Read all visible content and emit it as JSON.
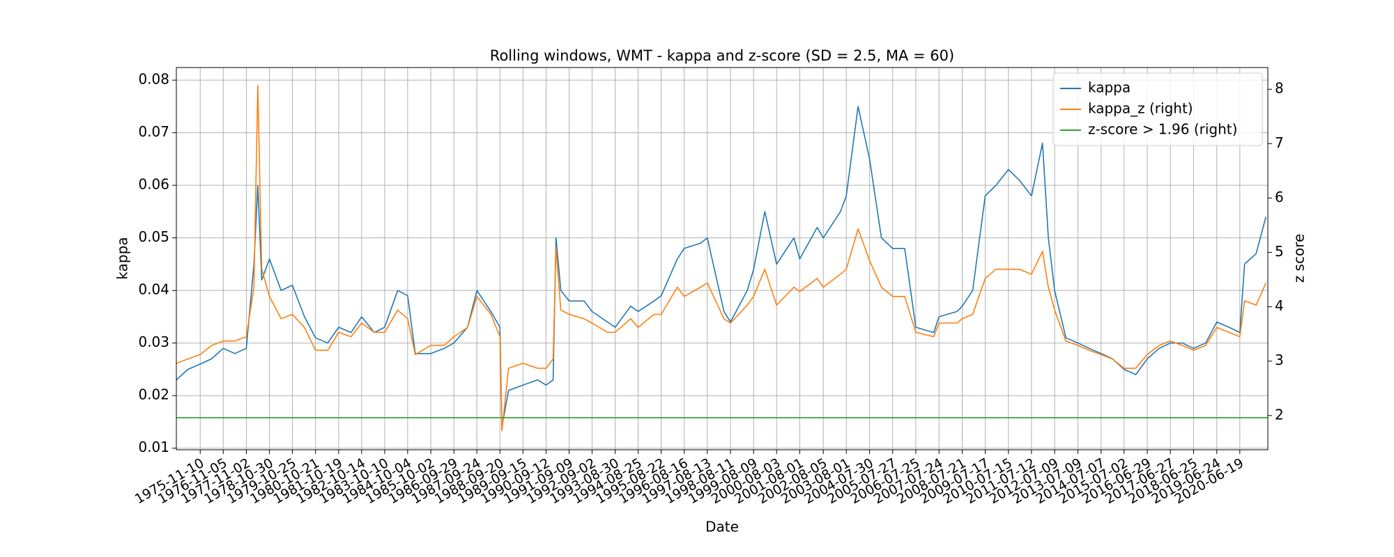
{
  "chart_data": {
    "type": "line",
    "title": "Rolling windows, WMT - kappa and z-score (SD = 2.5, MA = 60)",
    "x_label": "Date",
    "y_label": "kappa",
    "y2_label": "z score",
    "x": [
      "1974-11-01",
      "1975-05-01",
      "1975-11-10",
      "1976-05-07",
      "1976-11-05",
      "1977-05-05",
      "1977-11-02",
      "1978-03-01",
      "1978-05-01",
      "1978-07-01",
      "1978-10-30",
      "1979-05-01",
      "1979-10-25",
      "1980-05-01",
      "1980-10-21",
      "1981-05-01",
      "1981-10-19",
      "1982-05-01",
      "1982-10-14",
      "1983-05-01",
      "1983-10-10",
      "1984-05-01",
      "1984-10-04",
      "1985-02-01",
      "1985-10-02",
      "1986-05-01",
      "1986-09-29",
      "1987-05-01",
      "1987-09-24",
      "1988-05-01",
      "1988-09-20",
      "1988-10-20",
      "1989-02-01",
      "1989-09-15",
      "1990-05-01",
      "1990-09-12",
      "1991-01-01",
      "1991-02-15",
      "1991-05-01",
      "1991-09-09",
      "1992-05-01",
      "1992-09-02",
      "1993-05-01",
      "1993-08-30",
      "1994-05-01",
      "1994-08-25",
      "1995-05-01",
      "1995-08-22",
      "1996-05-01",
      "1996-08-16",
      "1997-05-01",
      "1997-08-13",
      "1998-05-01",
      "1998-08-11",
      "1999-05-01",
      "1999-08-09",
      "2000-02-01",
      "2000-08-03",
      "2001-05-01",
      "2001-08-01",
      "2002-05-01",
      "2002-08-05",
      "2003-05-01",
      "2003-08-01",
      "2004-02-01",
      "2004-07-30",
      "2005-02-01",
      "2005-07-27",
      "2006-02-01",
      "2006-07-25",
      "2007-05-01",
      "2007-07-24",
      "2008-05-01",
      "2008-07-21",
      "2009-01-01",
      "2009-07-17",
      "2010-01-01",
      "2010-07-15",
      "2011-01-01",
      "2011-07-12",
      "2012-01-01",
      "2012-04-01",
      "2012-07-09",
      "2013-01-01",
      "2013-07-09",
      "2014-01-01",
      "2014-07-07",
      "2015-01-01",
      "2015-07-02",
      "2016-01-01",
      "2016-06-29",
      "2017-01-01",
      "2017-06-27",
      "2018-01-01",
      "2018-06-25",
      "2019-01-01",
      "2019-06-24",
      "2020-01-01",
      "2020-06-19",
      "2020-09-01",
      "2021-03-01",
      "2021-08-01"
    ],
    "series": [
      {
        "name": "kappa",
        "color": "#1f77b4",
        "values": [
          0.023,
          0.025,
          0.026,
          0.027,
          0.029,
          0.028,
          0.029,
          0.045,
          0.06,
          0.042,
          0.046,
          0.04,
          0.041,
          0.035,
          0.031,
          0.03,
          0.033,
          0.032,
          0.035,
          0.032,
          0.033,
          0.04,
          0.039,
          0.028,
          0.028,
          0.029,
          0.03,
          0.033,
          0.04,
          0.036,
          0.033,
          0.014,
          0.021,
          0.022,
          0.023,
          0.022,
          0.023,
          0.05,
          0.04,
          0.038,
          0.038,
          0.036,
          0.034,
          0.033,
          0.037,
          0.036,
          0.038,
          0.039,
          0.046,
          0.048,
          0.049,
          0.05,
          0.036,
          0.034,
          0.04,
          0.044,
          0.055,
          0.045,
          0.05,
          0.046,
          0.052,
          0.05,
          0.055,
          0.058,
          0.075,
          0.065,
          0.05,
          0.048,
          0.048,
          0.033,
          0.032,
          0.035,
          0.036,
          0.037,
          0.04,
          0.058,
          0.06,
          0.063,
          0.061,
          0.058,
          0.068,
          0.05,
          0.04,
          0.031,
          0.03,
          0.029,
          0.028,
          0.027,
          0.025,
          0.024,
          0.027,
          0.029,
          0.03,
          0.03,
          0.029,
          0.03,
          0.034,
          0.033,
          0.032,
          0.045,
          0.047,
          0.054
        ]
      },
      {
        "name": "kappa_z (right)",
        "color": "#ff7f0e",
        "axis": "y2",
        "values": [
          2.96,
          3.04,
          3.12,
          3.29,
          3.37,
          3.37,
          3.45,
          4.36,
          8.07,
          4.69,
          4.19,
          3.78,
          3.86,
          3.62,
          3.2,
          3.2,
          3.53,
          3.45,
          3.7,
          3.53,
          3.53,
          3.94,
          3.78,
          3.12,
          3.29,
          3.29,
          3.45,
          3.62,
          4.19,
          3.86,
          3.45,
          1.72,
          2.87,
          2.96,
          2.87,
          2.87,
          3.04,
          5.1,
          3.94,
          3.86,
          3.78,
          3.7,
          3.53,
          3.53,
          3.78,
          3.62,
          3.86,
          3.86,
          4.36,
          4.19,
          4.36,
          4.44,
          3.78,
          3.7,
          4.03,
          4.19,
          4.69,
          4.03,
          4.36,
          4.28,
          4.52,
          4.36,
          4.6,
          4.69,
          5.43,
          4.85,
          4.36,
          4.19,
          4.19,
          3.53,
          3.45,
          3.7,
          3.7,
          3.78,
          3.86,
          4.52,
          4.69,
          4.69,
          4.69,
          4.6,
          5.02,
          4.36,
          3.94,
          3.37,
          3.29,
          3.2,
          3.12,
          3.04,
          2.87,
          2.87,
          3.12,
          3.29,
          3.37,
          3.29,
          3.2,
          3.29,
          3.62,
          3.53,
          3.45,
          4.11,
          4.03,
          4.44
        ]
      },
      {
        "name": "z-score > 1.96 (right)",
        "color": "#2ca02c",
        "axis": "y2",
        "x": [
          "1974-11-01",
          "2021-09-01"
        ],
        "values": [
          1.96,
          1.96
        ]
      }
    ],
    "xlim": [
      "1974-11-01",
      "2021-09-01"
    ],
    "xticks": [
      "1975-11-10",
      "1976-11-05",
      "1977-11-02",
      "1978-10-30",
      "1979-10-25",
      "1980-10-21",
      "1981-10-19",
      "1982-10-14",
      "1983-10-10",
      "1984-10-04",
      "1985-10-02",
      "1986-09-29",
      "1987-09-24",
      "1988-09-20",
      "1989-09-15",
      "1990-09-12",
      "1991-09-09",
      "1992-09-02",
      "1993-08-30",
      "1994-08-25",
      "1995-08-22",
      "1996-08-16",
      "1997-08-13",
      "1998-08-11",
      "1999-08-09",
      "2000-08-03",
      "2001-08-01",
      "2002-08-05",
      "2003-08-01",
      "2004-07-30",
      "2005-07-27",
      "2006-07-25",
      "2007-07-24",
      "2008-07-21",
      "2009-07-17",
      "2010-07-15",
      "2011-07-12",
      "2012-07-09",
      "2013-07-09",
      "2014-07-07",
      "2015-07-02",
      "2016-06-29",
      "2017-06-27",
      "2018-06-25",
      "2019-06-24",
      "2020-06-19"
    ],
    "ylim": [
      0.0097,
      0.0824
    ],
    "yticks": [
      0.01,
      0.02,
      0.03,
      0.04,
      0.05,
      0.06,
      0.07,
      0.08
    ],
    "y2lim": [
      1.37,
      8.4
    ],
    "y2ticks": [
      2,
      3,
      4,
      5,
      6,
      7,
      8
    ],
    "grid": true,
    "legend": "upper right"
  }
}
